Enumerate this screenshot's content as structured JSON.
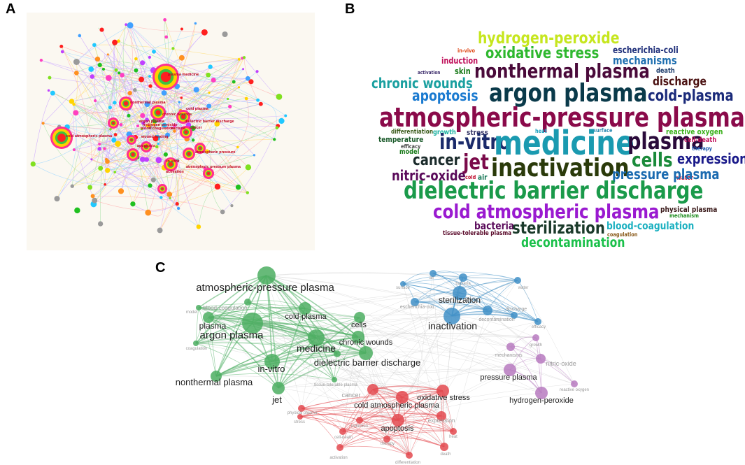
{
  "panels": {
    "a": "A",
    "b": "B",
    "c": "C"
  },
  "panel_a": {
    "labels": [
      "plasma medicine",
      "nonthermal plasma",
      "cold plasma",
      "chronic wounds",
      "dielectric barrier discharge",
      "argon plasma",
      "hydrogen peroxide",
      "blood coagulation",
      "bacteria",
      "cancer",
      "cold atmospheric plasma",
      "wound healing",
      "apoptosis",
      "atmospheric pressure",
      "in vitro",
      "atmospheric pressure plasma",
      "activation"
    ]
  },
  "panel_b": {
    "words": [
      {
        "text": "hydrogen-peroxide",
        "color": "#c6e61e"
      },
      {
        "text": "in-vivo",
        "color": "#e04a1a"
      },
      {
        "text": "oxidative stress",
        "color": "#2fb82f"
      },
      {
        "text": "escherichia-coli",
        "color": "#1f2f7a"
      },
      {
        "text": "induction",
        "color": "#c0105a"
      },
      {
        "text": "mechanisms",
        "color": "#1f6fb0"
      },
      {
        "text": "activation",
        "color": "#3a2a6a"
      },
      {
        "text": "skin",
        "color": "#1a7a1a"
      },
      {
        "text": "nonthermal plasma",
        "color": "#4a0a3a"
      },
      {
        "text": "death",
        "color": "#1a3a6a"
      },
      {
        "text": "chronic wounds",
        "color": "#1aa0a0"
      },
      {
        "text": "discharge",
        "color": "#4a1010"
      },
      {
        "text": "apoptosis",
        "color": "#1a7ad0"
      },
      {
        "text": "argon plasma",
        "color": "#0a3a4a"
      },
      {
        "text": "cold-plasma",
        "color": "#1a2a7a"
      },
      {
        "text": "atmospheric-pressure plasma",
        "color": "#8a0a4a"
      },
      {
        "text": "differentiation",
        "color": "#3a5a1a"
      },
      {
        "text": "growth",
        "color": "#1ab0a0"
      },
      {
        "text": "stress",
        "color": "#3a3a6a"
      },
      {
        "text": "heat",
        "color": "#1aa0c0"
      },
      {
        "text": "surface",
        "color": "#2a8ab0"
      },
      {
        "text": "reactive oxygen",
        "color": "#3ab01a"
      },
      {
        "text": "temperature",
        "color": "#1a5a2a"
      },
      {
        "text": "efficacy",
        "color": "#4a4a4a"
      },
      {
        "text": "in-vitro",
        "color": "#1a2a6a"
      },
      {
        "text": "medicine",
        "color": "#1a9ab0"
      },
      {
        "text": "plasma",
        "color": "#2a0a3a"
      },
      {
        "text": "cell-death",
        "color": "#c0105a"
      },
      {
        "text": "therapy",
        "color": "#1a5ab0"
      },
      {
        "text": "model",
        "color": "#1a7a1a"
      },
      {
        "text": "cancer",
        "color": "#1a2a2a"
      },
      {
        "text": "jet",
        "color": "#7a0a4a"
      },
      {
        "text": "inactivation",
        "color": "#2a3a0a"
      },
      {
        "text": "cells",
        "color": "#1a8a3a"
      },
      {
        "text": "expression",
        "color": "#1a1a8a"
      },
      {
        "text": "nitric-oxide",
        "color": "#5a0a5a"
      },
      {
        "text": "cold",
        "color": "#c01030"
      },
      {
        "text": "air",
        "color": "#1a7a5a"
      },
      {
        "text": "water",
        "color": "#c01030"
      },
      {
        "text": "pressure plasma",
        "color": "#1a6ab0"
      },
      {
        "text": "dielectric barrier discharge",
        "color": "#1a9a4a"
      },
      {
        "text": "cold atmospheric plasma",
        "color": "#9a1ad0"
      },
      {
        "text": "physical plasma",
        "color": "#3a1a1a"
      },
      {
        "text": "mechanism",
        "color": "#1a8a1a"
      },
      {
        "text": "bacteria",
        "color": "#5a0a5a"
      },
      {
        "text": "sterilization",
        "color": "#1a3a2a"
      },
      {
        "text": "blood-coagulation",
        "color": "#1ab0c0"
      },
      {
        "text": "tissue-tolerable plasma",
        "color": "#5a0a2a"
      },
      {
        "text": "coagulation",
        "color": "#8a5a1a"
      },
      {
        "text": "decontamination",
        "color": "#1ac04a"
      }
    ]
  },
  "panel_c": {
    "clusters": {
      "green": "#4cae62",
      "blue": "#3f8fc7",
      "purple": "#b77ac0",
      "red": "#e3494f"
    },
    "nodes": [
      {
        "label": "atmospheric-pressure plasma",
        "cluster": "green"
      },
      {
        "label": "blood-coagulation",
        "cluster": "green"
      },
      {
        "label": "model",
        "cluster": "green"
      },
      {
        "label": "plasma",
        "cluster": "green"
      },
      {
        "label": "cold-plasma",
        "cluster": "green"
      },
      {
        "label": "cells",
        "cluster": "green"
      },
      {
        "label": "argon plasma",
        "cluster": "green"
      },
      {
        "label": "medicine",
        "cluster": "green"
      },
      {
        "label": "chronic wounds",
        "cluster": "green"
      },
      {
        "label": "coagulation",
        "cluster": "green"
      },
      {
        "label": "skin",
        "cluster": "green"
      },
      {
        "label": "dielectric barrier discharge",
        "cluster": "green"
      },
      {
        "label": "in-vitro",
        "cluster": "green"
      },
      {
        "label": "nonthermal plasma",
        "cluster": "green"
      },
      {
        "label": "jet",
        "cluster": "green"
      },
      {
        "label": "tissue-tolerable plasma",
        "cluster": "green"
      },
      {
        "label": "surface",
        "cluster": "blue"
      },
      {
        "label": "air",
        "cluster": "blue"
      },
      {
        "label": "bacteria",
        "cluster": "blue"
      },
      {
        "label": "water",
        "cluster": "blue"
      },
      {
        "label": "escherichia-coli",
        "cluster": "blue"
      },
      {
        "label": "sterilization",
        "cluster": "blue"
      },
      {
        "label": "discharge",
        "cluster": "blue"
      },
      {
        "label": "inactivation",
        "cluster": "blue"
      },
      {
        "label": "decontamination",
        "cluster": "blue"
      },
      {
        "label": "efficacy",
        "cluster": "blue"
      },
      {
        "label": "growth",
        "cluster": "purple"
      },
      {
        "label": "mechanisms",
        "cluster": "purple"
      },
      {
        "label": "nitric-oxide",
        "cluster": "purple"
      },
      {
        "label": "pressure plasma",
        "cluster": "purple"
      },
      {
        "label": "reactive oxygen",
        "cluster": "purple"
      },
      {
        "label": "hydrogen-peroxide",
        "cluster": "purple"
      },
      {
        "label": "cancer",
        "cluster": "red"
      },
      {
        "label": "oxidative stress",
        "cluster": "red"
      },
      {
        "label": "cold atmospheric plasma",
        "cluster": "red"
      },
      {
        "label": "physical plasma",
        "cluster": "red"
      },
      {
        "label": "stress",
        "cluster": "red"
      },
      {
        "label": "induction",
        "cluster": "red"
      },
      {
        "label": "apoptosis",
        "cluster": "red"
      },
      {
        "label": "expression",
        "cluster": "red"
      },
      {
        "label": "cell-death",
        "cluster": "red"
      },
      {
        "label": "therapy",
        "cluster": "red"
      },
      {
        "label": "heat",
        "cluster": "red"
      },
      {
        "label": "activation",
        "cluster": "red"
      },
      {
        "label": "differentiation",
        "cluster": "red"
      },
      {
        "label": "death",
        "cluster": "red"
      }
    ]
  }
}
